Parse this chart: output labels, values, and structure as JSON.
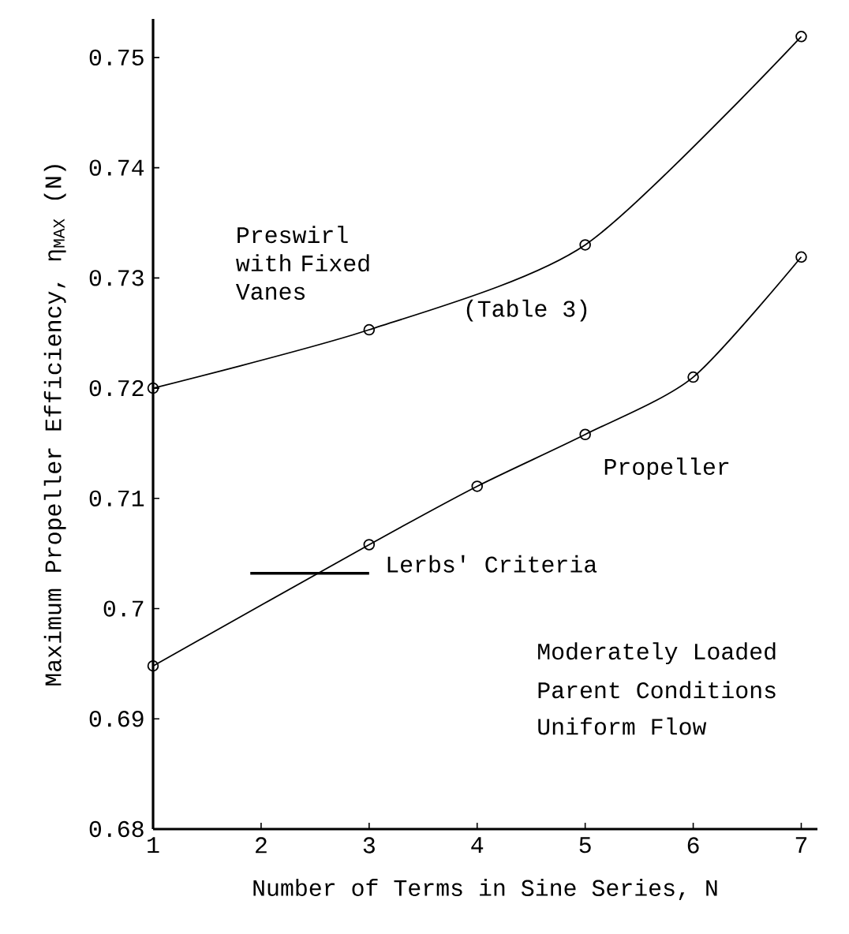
{
  "chart_data": {
    "type": "line",
    "xlabel": "Number of Terms in Sine Series, N",
    "ylabel": "Maximum Propeller Efficiency, η$_{MAX}$ (N)",
    "xlim": [
      1,
      7.15
    ],
    "ylim": [
      0.68,
      0.7535
    ],
    "xticks": [
      1,
      2,
      3,
      4,
      5,
      6,
      7
    ],
    "yticks": [
      0.68,
      0.69,
      0.7,
      0.71,
      0.72,
      0.73,
      0.74,
      0.75
    ],
    "marker": "circle",
    "grid": false,
    "legend": false,
    "series": [
      {
        "name": "Preswirl with Fixed Vanes",
        "color": "#000000",
        "x": [
          1,
          3,
          5,
          7
        ],
        "values": [
          0.72,
          0.7253,
          0.733,
          0.7519
        ]
      },
      {
        "name": "Propeller",
        "color": "#000000",
        "x": [
          1,
          3,
          4,
          5,
          6,
          7
        ],
        "values": [
          0.6948,
          0.7058,
          0.7111,
          0.7158,
          0.721,
          0.7319
        ]
      },
      {
        "name": "Lerbs' Criteria",
        "color": "#000000",
        "marker": "none",
        "x": [
          1.9,
          3
        ],
        "values": [
          0.7032,
          0.7032
        ]
      }
    ],
    "annotations": [
      "(Table 3)",
      "Moderately Loaded",
      "Parent Conditions",
      "Uniform Flow"
    ]
  }
}
